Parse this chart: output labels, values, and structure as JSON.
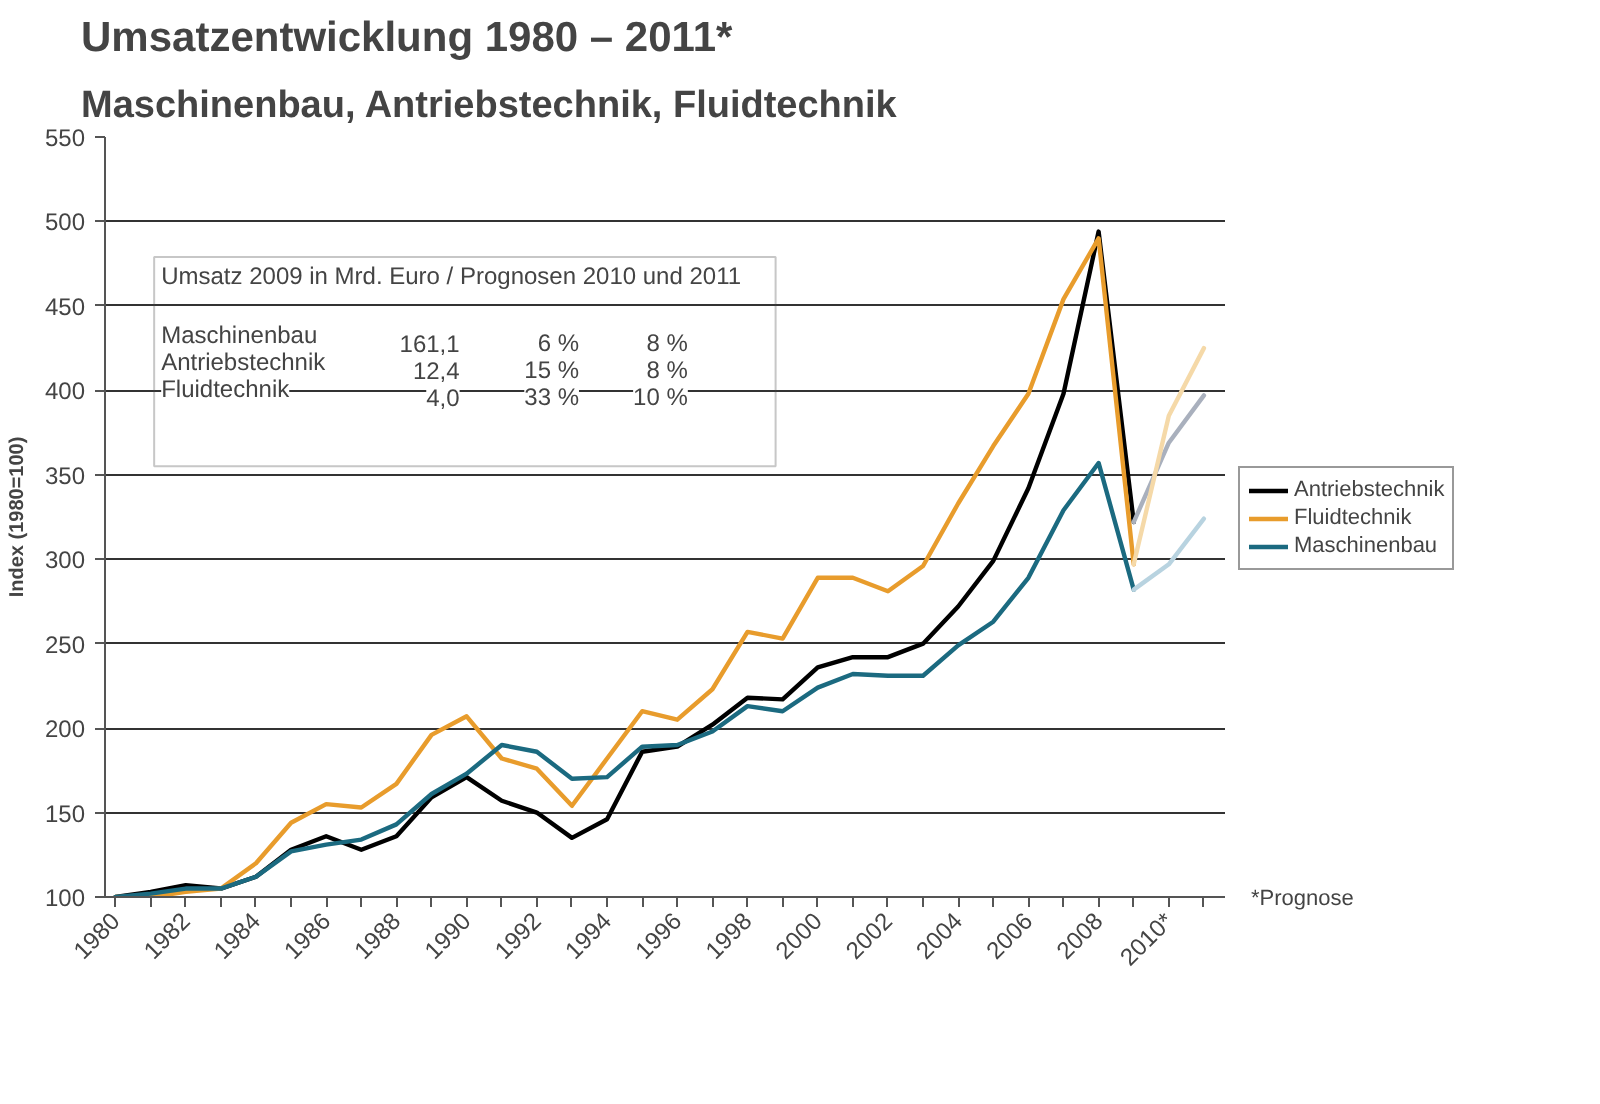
{
  "chart_data": {
    "type": "line",
    "title": "Umsatzentwicklung 1980 – 2011*",
    "subtitle": "Maschinenbau, Antriebstechnik, Fluidtechnik",
    "ylabel": "Index (1980=100)",
    "x": [
      1980,
      1981,
      1982,
      1983,
      1984,
      1985,
      1986,
      1987,
      1988,
      1989,
      1990,
      1991,
      1992,
      1993,
      1994,
      1995,
      1996,
      1997,
      1998,
      1999,
      2000,
      2001,
      2002,
      2003,
      2004,
      2005,
      2006,
      2007,
      2008,
      2009
    ],
    "series": [
      {
        "name": "Antriebstechnik",
        "color": "#000000",
        "values": [
          100,
          103,
          107,
          105,
          112,
          128,
          136,
          128,
          136,
          159,
          171,
          157,
          150,
          135,
          146,
          186,
          189,
          202,
          218,
          217,
          236,
          242,
          242,
          250,
          272,
          299,
          342,
          398,
          494,
          322
        ]
      },
      {
        "name": "Fluidtechnik",
        "color": "#e89c2c",
        "values": [
          100,
          100,
          103,
          105,
          120,
          144,
          155,
          153,
          167,
          196,
          207,
          182,
          176,
          154,
          182,
          210,
          205,
          223,
          257,
          253,
          289,
          289,
          281,
          296,
          333,
          367,
          398,
          454,
          490,
          297
        ]
      },
      {
        "name": "Maschinenbau",
        "color": "#1b6a80",
        "values": [
          100,
          102,
          105,
          105,
          112,
          127,
          131,
          134,
          143,
          161,
          173,
          190,
          186,
          170,
          171,
          189,
          190,
          198,
          213,
          210,
          224,
          232,
          231,
          231,
          249,
          263,
          289,
          329,
          357,
          282
        ]
      },
      {
        "color": "#a9b0bd",
        "x": [
          2009,
          2010,
          2011
        ],
        "values": [
          322,
          369,
          397
        ]
      },
      {
        "color": "#f5d9a8",
        "x": [
          2009,
          2010,
          2011
        ],
        "values": [
          297,
          385,
          425
        ]
      },
      {
        "color": "#b8d3e0",
        "x": [
          2009,
          2010,
          2011
        ],
        "values": [
          282,
          297,
          324
        ]
      }
    ],
    "xlim": [
      1979.7,
      2011.6
    ],
    "xticks": [
      1980,
      {
        "value": 1981,
        "label": null
      },
      1982,
      {
        "value": 1983,
        "label": null
      },
      1984,
      {
        "value": 1985,
        "label": null
      },
      1986,
      {
        "value": 1987,
        "label": null
      },
      1988,
      {
        "value": 1989,
        "label": null
      },
      1990,
      {
        "value": 1991,
        "label": null
      },
      1992,
      {
        "value": 1993,
        "label": null
      },
      1994,
      {
        "value": 1995,
        "label": null
      },
      1996,
      {
        "value": 1997,
        "label": null
      },
      1998,
      {
        "value": 1999,
        "label": null
      },
      2000,
      {
        "value": 2001,
        "label": null
      },
      2002,
      {
        "value": 2003,
        "label": null
      },
      2004,
      {
        "value": 2005,
        "label": null
      },
      2006,
      {
        "value": 2007,
        "label": null
      },
      2008,
      {
        "value": 2009,
        "label": null
      },
      {
        "value": 2010,
        "label": "2010*"
      },
      {
        "value": 2011,
        "label": null
      }
    ],
    "ylim": [
      100,
      550
    ],
    "yticks": [
      100,
      150,
      200,
      250,
      300,
      350,
      400,
      450,
      500,
      550
    ],
    "grid": "y",
    "legend": "right",
    "line_style": "solid",
    "marker": "none",
    "annotations": [
      "Umsatz 2009 in Mrd. Euro / Prognosen 2010 und 2011",
      "Maschinenbau",
      "161,1",
      "6 %",
      "8 %",
      "Antriebstechnik",
      "12,4",
      "15 %",
      "8 %",
      "Fluidtechnik",
      "4,0",
      "33 %",
      "10 %",
      "*Prognose"
    ]
  }
}
